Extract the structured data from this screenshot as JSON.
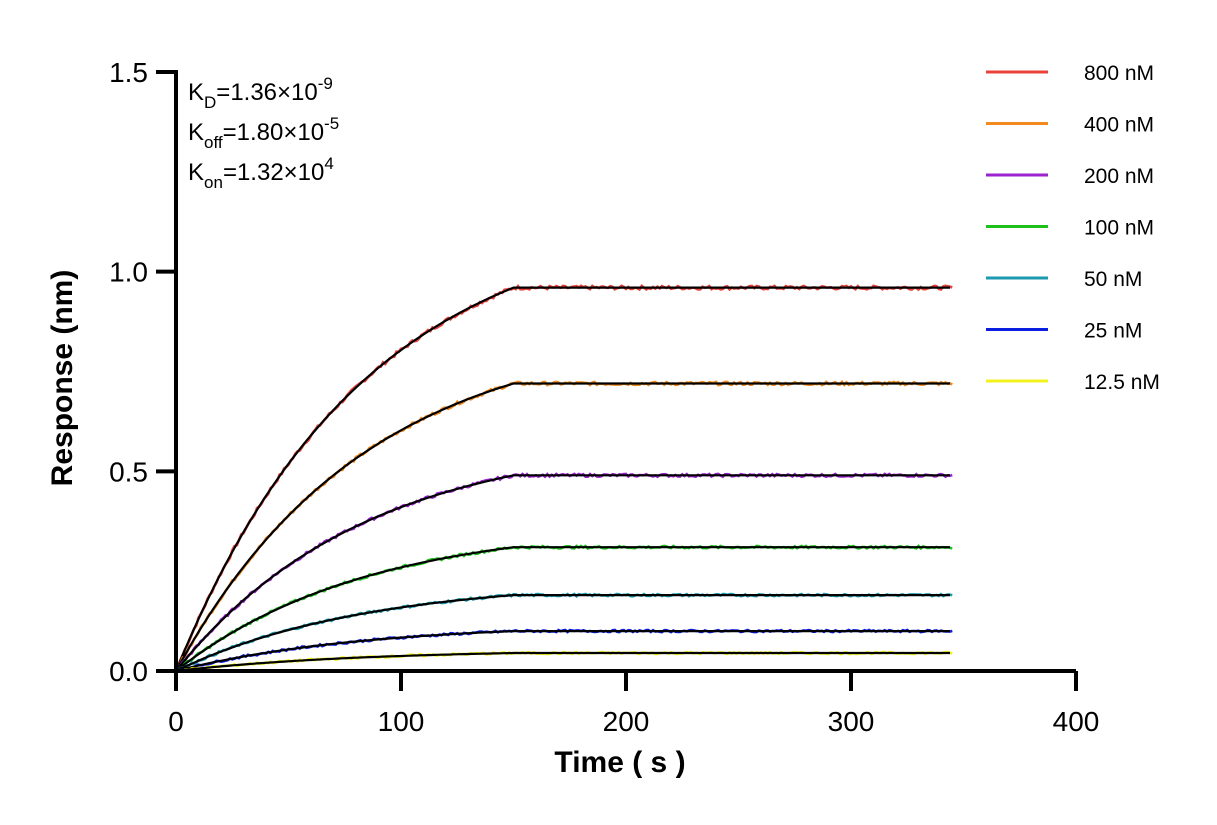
{
  "chart_data": {
    "type": "line",
    "title": "",
    "xlabel": "Time ( s )",
    "ylabel": "Response (nm)",
    "xlim": [
      0,
      400
    ],
    "ylim": [
      0,
      1.5
    ],
    "x_ticks": [
      0,
      100,
      200,
      300,
      400
    ],
    "x_tick_labels": [
      "0",
      "100",
      "200",
      "300",
      "400"
    ],
    "y_ticks": [
      0,
      0.5,
      1.0,
      1.5
    ],
    "y_tick_labels": [
      "0.0",
      "0.5",
      "1.0",
      "1.5"
    ],
    "grid": false,
    "legend_position": "top-right",
    "association_end_time": 150,
    "end_time": 345,
    "fit_color": "#000000",
    "annotations": [
      {
        "main": "K",
        "sub": "D",
        "rest": "=1.36×10",
        "sup": "-9"
      },
      {
        "main": "K",
        "sub": "off",
        "rest": "=1.80×10",
        "sup": "-5"
      },
      {
        "main": "K",
        "sub": "on",
        "rest": "=1.32×10",
        "sup": "4"
      }
    ],
    "series": [
      {
        "name": "800 nM",
        "color": "#e8413a",
        "plateau": 0.96
      },
      {
        "name": "400 nM",
        "color": "#f28a1e",
        "plateau": 0.72
      },
      {
        "name": "200 nM",
        "color": "#9b22cf",
        "plateau": 0.49
      },
      {
        "name": "100 nM",
        "color": "#1ec01e",
        "plateau": 0.31
      },
      {
        "name": "50 nM",
        "color": "#1c9aaf",
        "plateau": 0.19
      },
      {
        "name": "25 nM",
        "color": "#0b1ee0",
        "plateau": 0.1
      },
      {
        "name": "12.5 nM",
        "color": "#f2f21c",
        "plateau": 0.045
      }
    ]
  }
}
